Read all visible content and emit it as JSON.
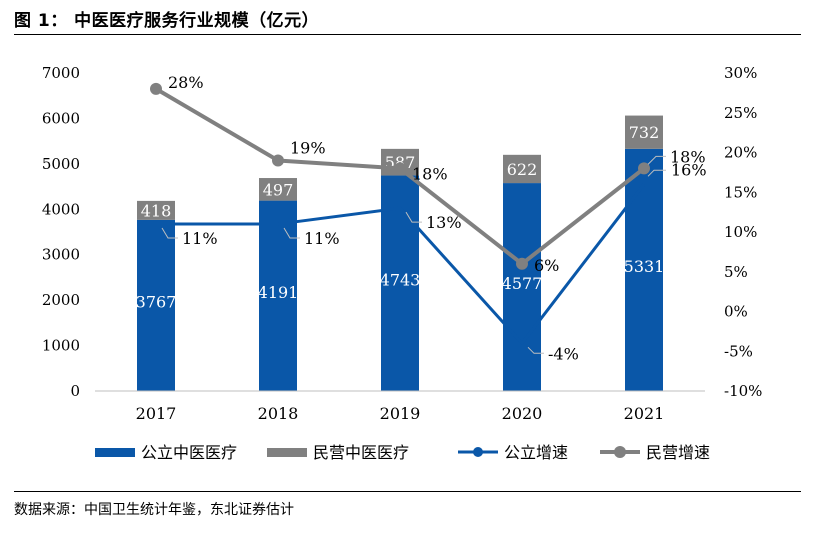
{
  "header": {
    "title": "图 1： 中医医疗服务行业规模（亿元）"
  },
  "footer": {
    "source": "数据来源：中国卫生统计年鉴，东北证券估计"
  },
  "colors": {
    "public": "#0a57a8",
    "private": "#808080"
  },
  "chart_data": {
    "type": "bar",
    "categories": [
      "2017",
      "2018",
      "2019",
      "2020",
      "2021"
    ],
    "series": [
      {
        "name": "公立中医医疗",
        "kind": "stacked-bar",
        "axis": "left",
        "values": [
          3767,
          4191,
          4743,
          4577,
          5331
        ],
        "labels": [
          "3767",
          "4191",
          "4743",
          "4577",
          "5331"
        ]
      },
      {
        "name": "民营中医医疗",
        "kind": "stacked-bar",
        "axis": "left",
        "values": [
          418,
          497,
          587,
          622,
          732
        ],
        "labels": [
          "418",
          "497",
          "587",
          "622",
          "732"
        ]
      },
      {
        "name": "公立增速",
        "kind": "line",
        "axis": "right",
        "values": [
          11,
          11,
          13,
          -4,
          16
        ],
        "labels": [
          "11%",
          "11%",
          "13%",
          "-4%",
          "16%"
        ]
      },
      {
        "name": "民营增速",
        "kind": "line",
        "axis": "right",
        "values": [
          28,
          19,
          18,
          6,
          18
        ],
        "labels": [
          "28%",
          "19%",
          "18%",
          "6%",
          "18%"
        ]
      }
    ],
    "y_left": {
      "min": 0,
      "max": 7000,
      "ticks": [
        "0",
        "1000",
        "2000",
        "3000",
        "4000",
        "5000",
        "6000",
        "7000"
      ]
    },
    "y_right": {
      "min": -10,
      "max": 30,
      "ticks": [
        "-10%",
        "-5%",
        "0%",
        "5%",
        "10%",
        "15%",
        "20%",
        "25%",
        "30%"
      ]
    },
    "grid": false,
    "legend_position": "bottom"
  }
}
